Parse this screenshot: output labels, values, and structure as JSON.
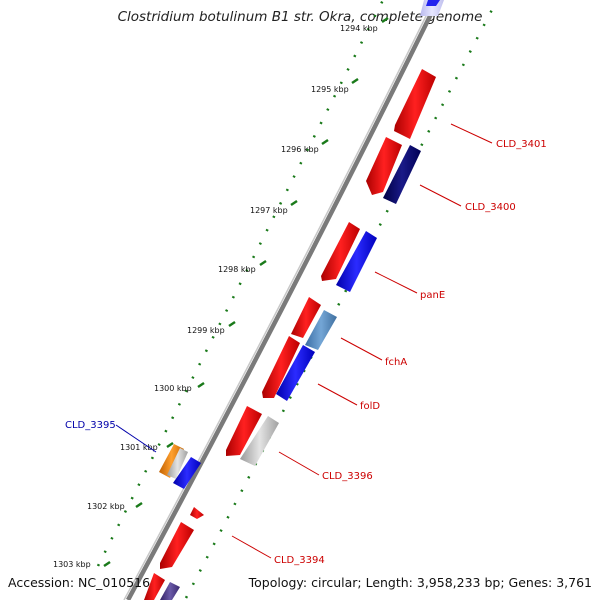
{
  "title": "Clostridium botulinum B1 str. Okra, complete genome",
  "accession": "Accession: NC_010516",
  "topology": "Topology: circular; Length: 3,958,233 bp; Genes: 3,761",
  "ticks": [
    "1294 kbp",
    "1295 kbp",
    "1296 kbp",
    "1297 kbp",
    "1298 kbp",
    "1299 kbp",
    "1300 kbp",
    "1301 kbp",
    "1302 kbp",
    "1303 kbp"
  ],
  "genes": [
    {
      "name": "CLD_3401",
      "color": "#cc0000"
    },
    {
      "name": "CLD_3400",
      "color": "#cc0000"
    },
    {
      "name": "panE",
      "color": "#cc0000"
    },
    {
      "name": "fchA",
      "color": "#cc0000"
    },
    {
      "name": "folD",
      "color": "#cc0000"
    },
    {
      "name": "CLD_3396",
      "color": "#cc0000"
    },
    {
      "name": "CLD_3394",
      "color": "#cc0000"
    },
    {
      "name": "CLD_3395",
      "color": "#0000aa"
    }
  ],
  "colors": {
    "forward_cds": "#ee0000",
    "reverse_cds": "#0000ee",
    "dark_cds": "#000066",
    "steel_cds": "#4f81bd",
    "grey_cds": "#bbbbbb",
    "orange_cds": "#f08000",
    "backbone": "#777777",
    "dots": "#1a7a1a"
  }
}
